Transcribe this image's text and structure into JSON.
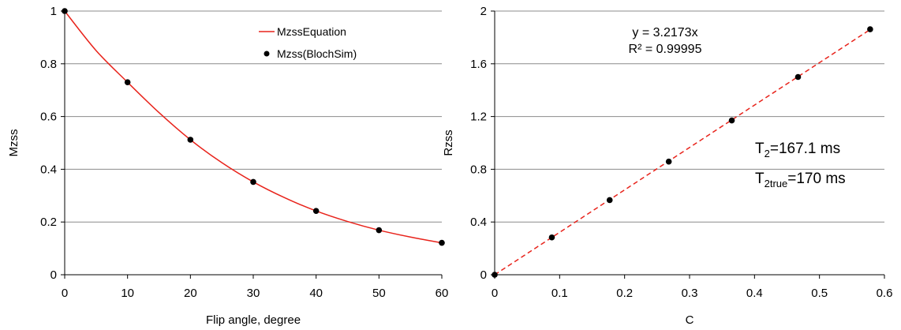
{
  "chart_data": [
    {
      "type": "line",
      "xlabel": "Flip angle, degree",
      "ylabel": "Mzss",
      "xlim": [
        0,
        60
      ],
      "ylim": [
        0,
        1
      ],
      "x_ticks": [
        "0",
        "10",
        "20",
        "30",
        "40",
        "50",
        "60"
      ],
      "y_ticks": [
        "0",
        "0.2",
        "0.4",
        "0.6",
        "0.8",
        "1"
      ],
      "grid": "horizontal",
      "legend_position": "top-right",
      "series": [
        {
          "name": "MzssEquation",
          "style": "line",
          "color": "#e8231b",
          "x": [
            0,
            5,
            10,
            15,
            20,
            25,
            30,
            35,
            40,
            45,
            50,
            55,
            60
          ],
          "y": [
            1.0,
            0.85,
            0.73,
            0.615,
            0.512,
            0.425,
            0.352,
            0.292,
            0.242,
            0.202,
            0.169,
            0.143,
            0.121
          ]
        },
        {
          "name": "Mzss(BlochSim)",
          "style": "markers",
          "color": "#000000",
          "x": [
            0,
            10,
            20,
            30,
            40,
            50,
            60
          ],
          "y": [
            1.0,
            0.73,
            0.512,
            0.352,
            0.242,
            0.169,
            0.121
          ]
        }
      ]
    },
    {
      "type": "scatter",
      "xlabel": "C",
      "ylabel": "Rzss",
      "xlim": [
        0,
        0.6
      ],
      "ylim": [
        0,
        2
      ],
      "x_ticks": [
        "0",
        "0.1",
        "0.2",
        "0.3",
        "0.4",
        "0.5",
        "0.6"
      ],
      "y_ticks": [
        "0",
        "0.4",
        "0.8",
        "1.2",
        "1.6",
        "2"
      ],
      "grid": "horizontal",
      "points": {
        "color": "#000000",
        "x": [
          0,
          0.088,
          0.177,
          0.268,
          0.365,
          0.467,
          0.578
        ],
        "y": [
          0,
          0.283,
          0.566,
          0.858,
          1.17,
          1.5,
          1.862
        ]
      },
      "trendline": {
        "color": "#e8231b",
        "style": "dashed",
        "slope": 3.2173,
        "x_range": [
          0,
          0.578
        ]
      },
      "annotations": {
        "equation": "y = 3.2173x",
        "r_squared": "R² = 0.99995",
        "t2_label": "T",
        "t2_sub": "2",
        "t2_value": "=167.1 ms",
        "t2true_label": "T",
        "t2true_sub": "2true",
        "t2true_value": "=170 ms"
      }
    }
  ]
}
